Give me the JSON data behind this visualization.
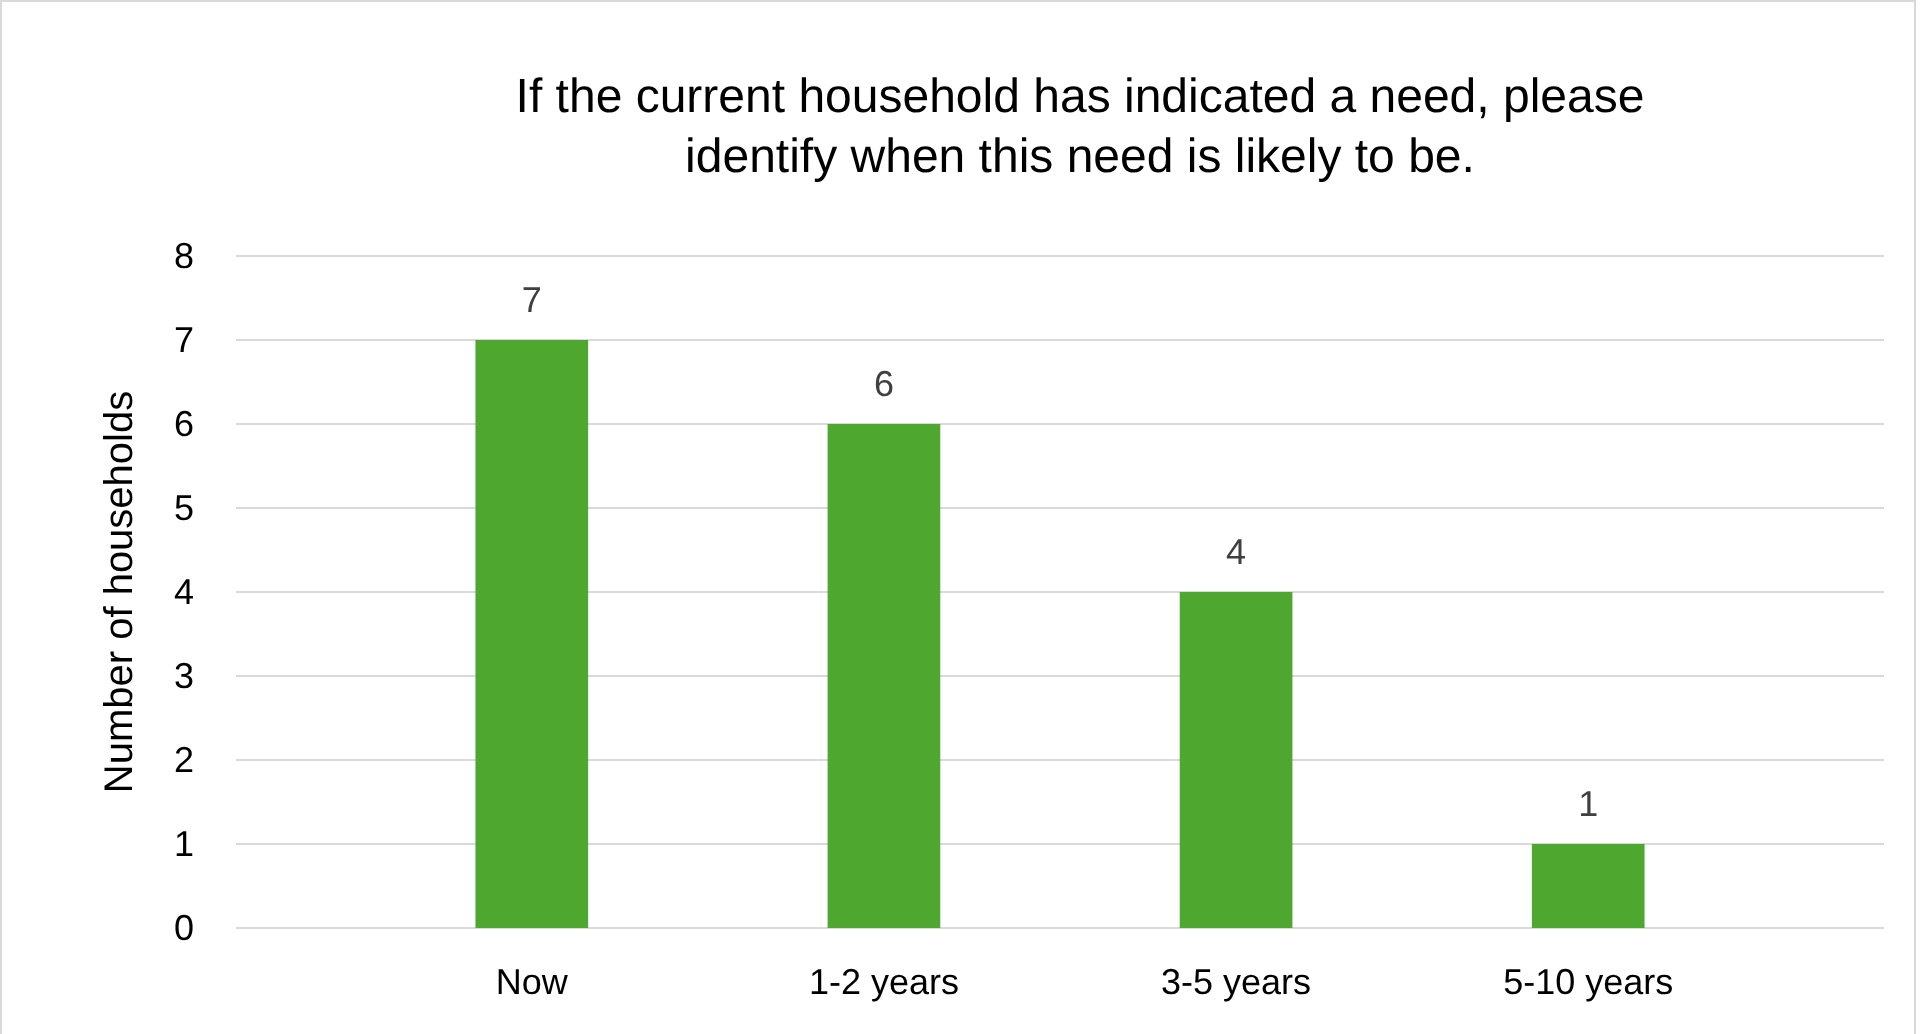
{
  "chart_data": {
    "type": "bar",
    "title": "If the current household has indicated a need, please identify when this need is likely to be.",
    "ylabel": "Number of households",
    "categories": [
      "Now",
      "1-2 years",
      "3-5 years",
      "5-10 years"
    ],
    "values": [
      7,
      6,
      4,
      1
    ],
    "color": "#4ea72e",
    "ylim": [
      0,
      8
    ],
    "yticks": [
      0,
      1,
      2,
      3,
      4,
      5,
      6,
      7,
      8
    ],
    "grid": "y",
    "data_labels": true
  }
}
